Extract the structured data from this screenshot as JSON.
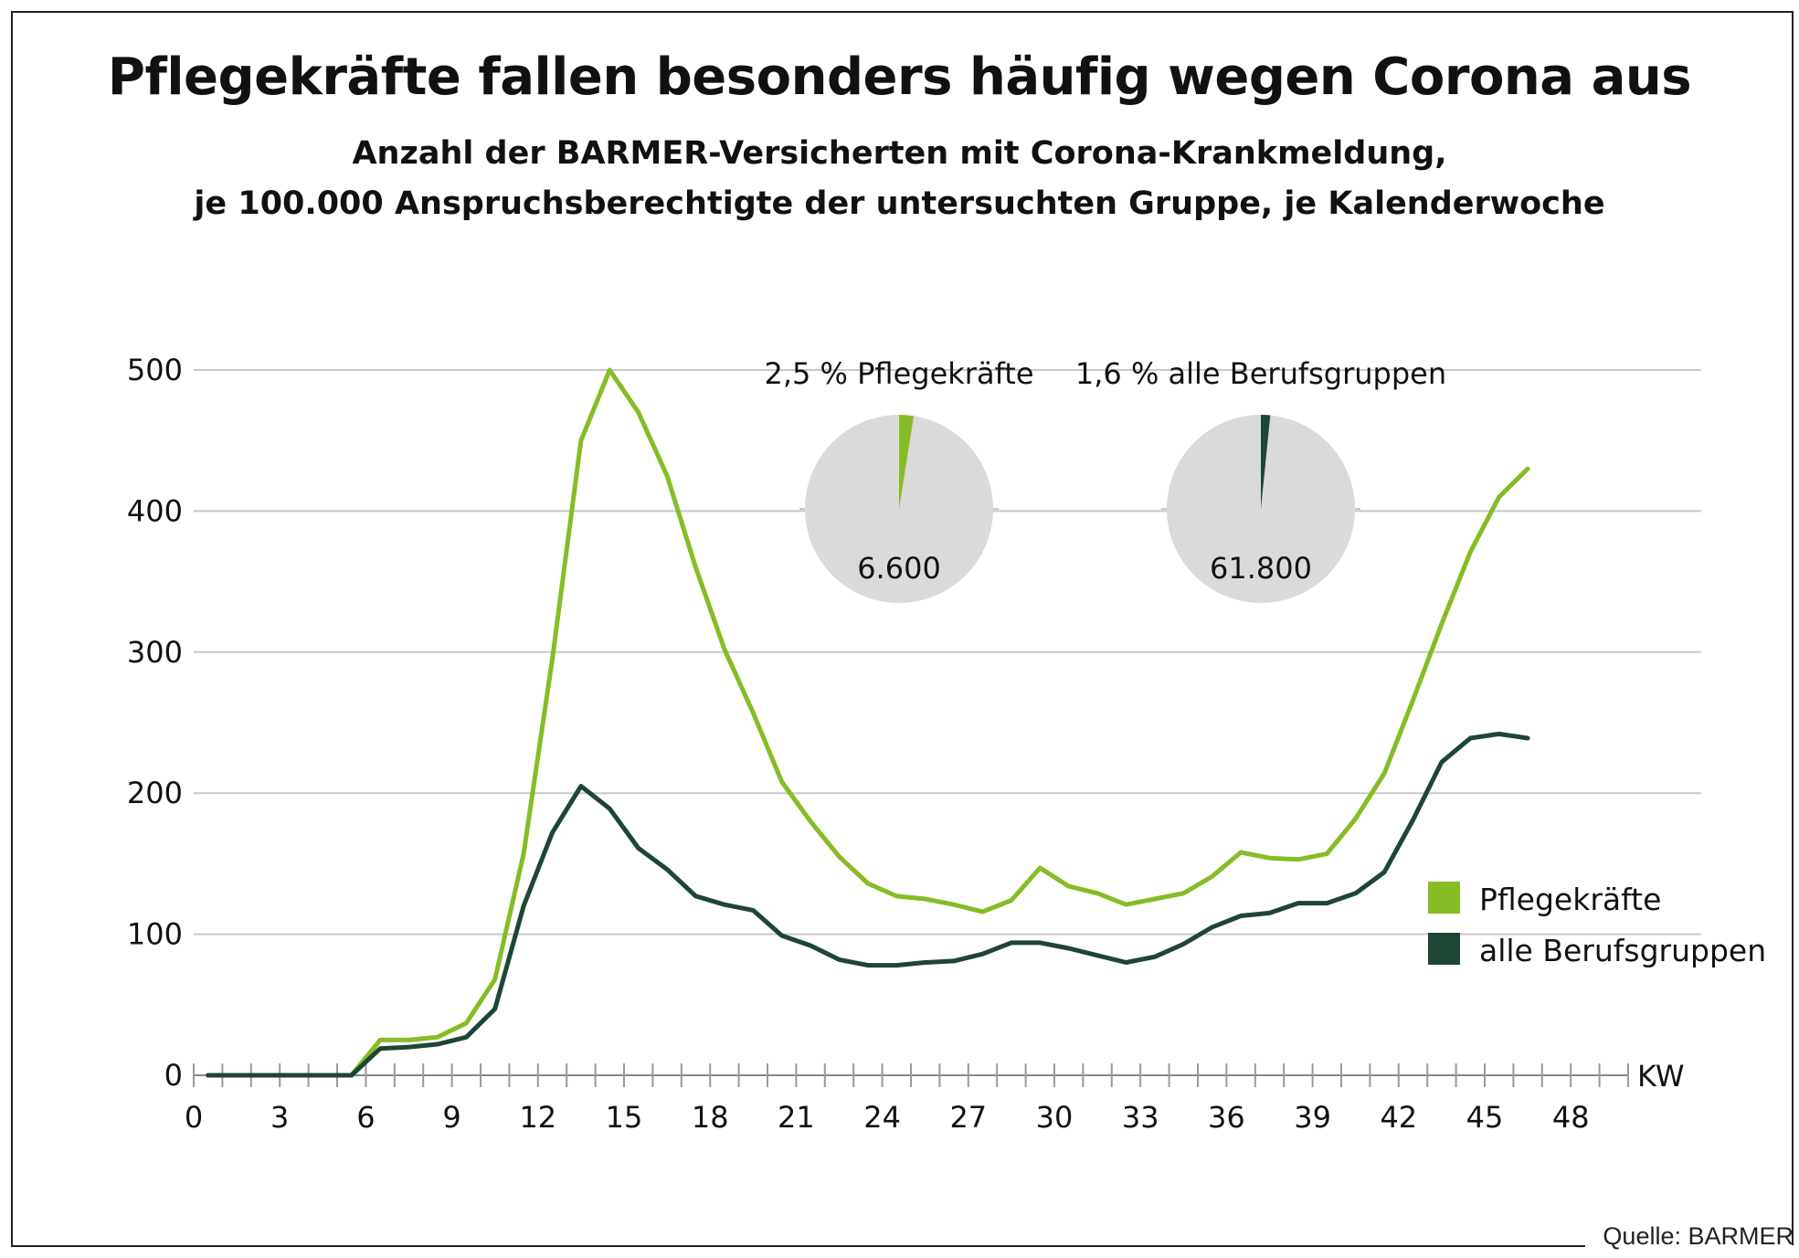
{
  "header": {
    "title": "Pflegekräfte fallen besonders häufig wegen Corona aus",
    "subtitle_line1": "Anzahl der BARMER-Versicherten mit Corona-Krankmeldung,",
    "subtitle_line2": "je 100.000 Anspruchsberechtigte der untersuchten Gruppe, je Kalenderwoche"
  },
  "footer": {
    "source": "Quelle: BARMER"
  },
  "colors": {
    "light_green": "#86bc25",
    "dark_green": "#1e4634",
    "pie_grey": "#d9dad9",
    "grid": "#c8c8c8"
  },
  "chart_data": {
    "type": "line",
    "title": "Pflegekräfte fallen besonders häufig wegen Corona aus",
    "xlabel": "KW",
    "ylabel": "",
    "xlim": [
      0,
      50
    ],
    "ylim": [
      0,
      500
    ],
    "x_ticks": [
      0,
      3,
      6,
      9,
      12,
      15,
      18,
      21,
      24,
      27,
      30,
      33,
      36,
      39,
      42,
      45,
      48
    ],
    "y_ticks": [
      0,
      100,
      200,
      300,
      400,
      500
    ],
    "grid": true,
    "legend_position": "right",
    "x": [
      0.5,
      1.5,
      2.5,
      3.5,
      4.5,
      5.5,
      6.5,
      7.5,
      8.5,
      9.5,
      10.5,
      11.5,
      12.5,
      13.5,
      14.5,
      15.5,
      16.5,
      17.5,
      18.5,
      19.5,
      20.5,
      21.5,
      22.5,
      23.5,
      24.5,
      25.5,
      26.5,
      27.5,
      28.5,
      29.5,
      30.5,
      31.5,
      32.5,
      33.5,
      34.5,
      35.5,
      36.5,
      37.5,
      38.5,
      39.5,
      40.5,
      41.5,
      42.5,
      43.5,
      44.5,
      45.5,
      46.5
    ],
    "series": [
      {
        "name": "Pflegekräfte",
        "color": "#86bc25",
        "values": [
          0,
          0,
          0,
          0,
          0,
          0,
          25,
          25,
          27,
          37,
          68,
          157,
          295,
          450,
          500,
          470,
          425,
          360,
          302,
          257,
          208,
          180,
          155,
          136,
          127,
          125,
          121,
          116,
          124,
          147,
          134,
          129,
          121,
          125,
          129,
          141,
          158,
          154,
          153,
          157,
          182,
          214,
          266,
          320,
          371,
          410,
          430
        ]
      },
      {
        "name": "alle Berufsgruppen",
        "color": "#1e4634",
        "values": [
          0,
          0,
          0,
          0,
          0,
          0,
          19,
          20,
          22,
          27,
          47,
          120,
          172,
          205,
          189,
          161,
          146,
          127,
          121,
          117,
          99,
          92,
          82,
          78,
          78,
          80,
          81,
          86,
          94,
          94,
          90,
          85,
          80,
          84,
          93,
          105,
          113,
          115,
          122,
          122,
          129,
          144,
          181,
          222,
          239,
          242,
          239
        ]
      }
    ],
    "pies": [
      {
        "label": "2,5 % Pflegekräfte",
        "value_label": "6.600",
        "percent": 2.5,
        "color": "#86bc25"
      },
      {
        "label": "1,6 % alle Berufsgruppen",
        "value_label": "61.800",
        "percent": 1.6,
        "color": "#1e4634"
      }
    ]
  }
}
